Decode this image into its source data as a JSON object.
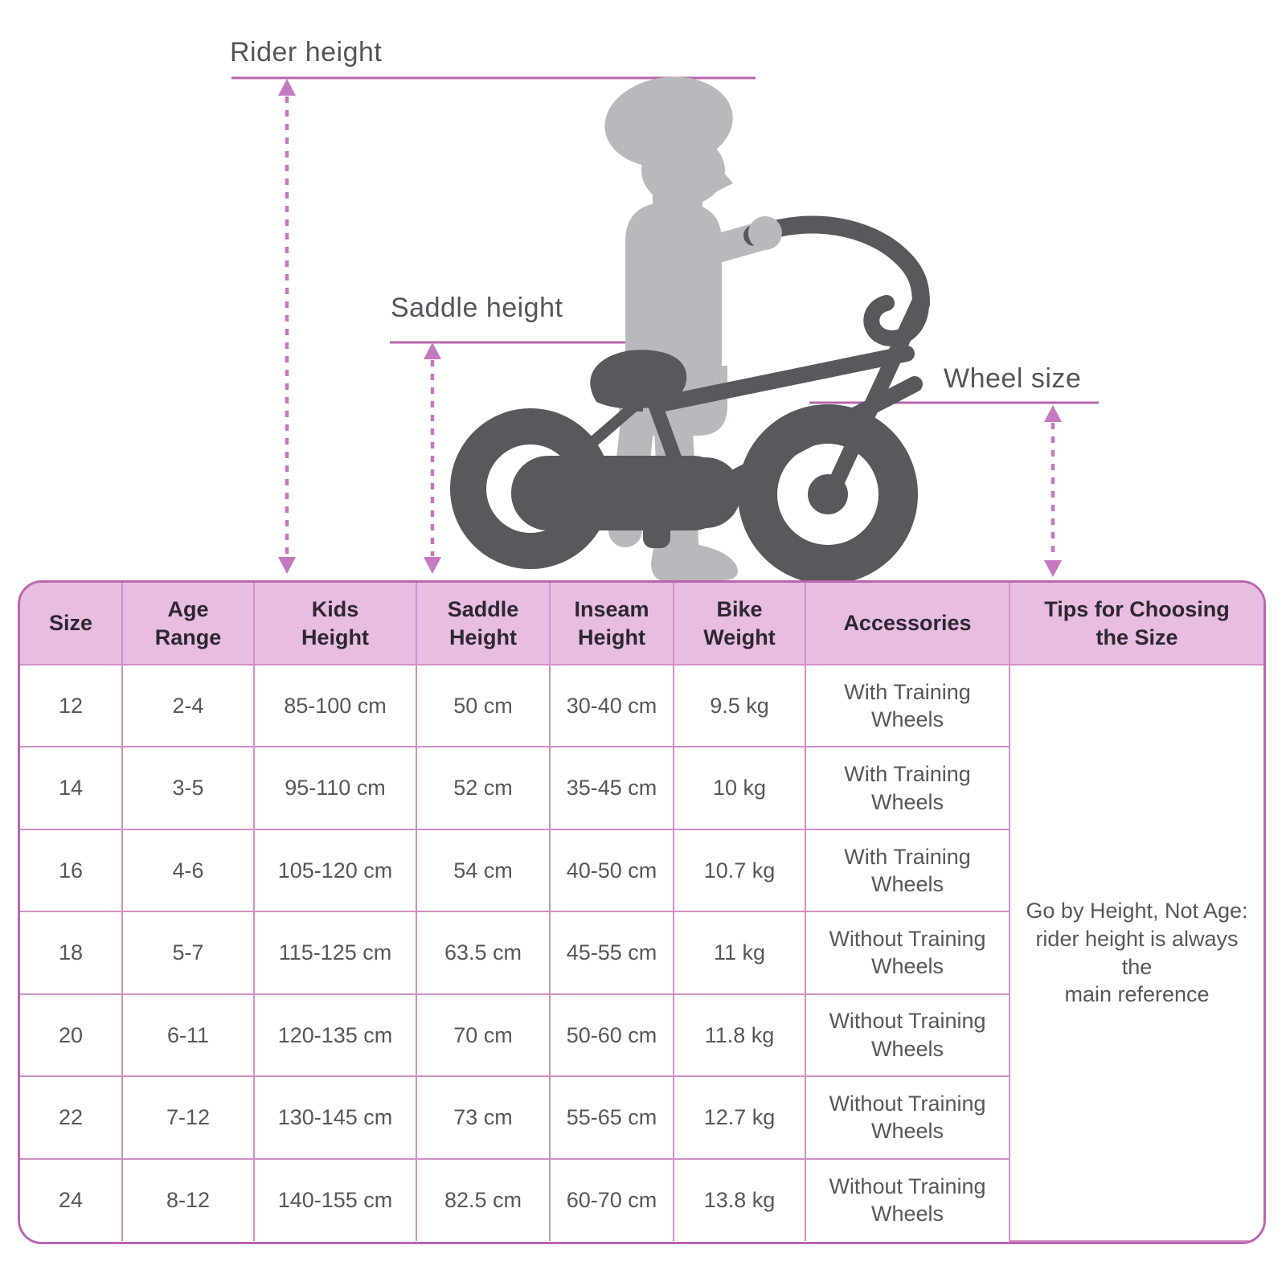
{
  "diagram": {
    "labels": {
      "rider_height": "Rider height",
      "saddle_height": "Saddle height",
      "wheel_size": "Wheel size"
    },
    "icons": [
      "child-with-helmet-silhouette",
      "kids-bike-silhouette",
      "dotted-measure-arrows"
    ]
  },
  "table": {
    "columns": [
      {
        "key": "size",
        "label": "Size"
      },
      {
        "key": "age",
        "label": "Age\nRange"
      },
      {
        "key": "kids_height",
        "label": "Kids\nHeight"
      },
      {
        "key": "saddle_height",
        "label": "Saddle\nHeight"
      },
      {
        "key": "inseam_height",
        "label": "Inseam\nHeight"
      },
      {
        "key": "bike_weight",
        "label": "Bike\nWeight"
      },
      {
        "key": "accessories",
        "label": "Accessories"
      },
      {
        "key": "tips",
        "label": "Tips for Choosing\nthe Size"
      }
    ],
    "rows": [
      {
        "size": "12",
        "age": "2-4",
        "kids_height": "85-100 cm",
        "saddle_height": "50 cm",
        "inseam_height": "30-40 cm",
        "bike_weight": "9.5 kg",
        "accessories": "With Training\nWheels"
      },
      {
        "size": "14",
        "age": "3-5",
        "kids_height": "95-110 cm",
        "saddle_height": "52 cm",
        "inseam_height": "35-45 cm",
        "bike_weight": "10 kg",
        "accessories": "With Training\nWheels"
      },
      {
        "size": "16",
        "age": "4-6",
        "kids_height": "105-120 cm",
        "saddle_height": "54 cm",
        "inseam_height": "40-50 cm",
        "bike_weight": "10.7 kg",
        "accessories": "With Training\nWheels"
      },
      {
        "size": "18",
        "age": "5-7",
        "kids_height": "115-125 cm",
        "saddle_height": "63.5 cm",
        "inseam_height": "45-55 cm",
        "bike_weight": "11 kg",
        "accessories": "Without Training\nWheels"
      },
      {
        "size": "20",
        "age": "6-11",
        "kids_height": "120-135 cm",
        "saddle_height": "70 cm",
        "inseam_height": "50-60 cm",
        "bike_weight": "11.8 kg",
        "accessories": "Without Training\nWheels"
      },
      {
        "size": "22",
        "age": "7-12",
        "kids_height": "130-145 cm",
        "saddle_height": "73 cm",
        "inseam_height": "55-65 cm",
        "bike_weight": "12.7 kg",
        "accessories": "Without Training\nWheels"
      },
      {
        "size": "24",
        "age": "8-12",
        "kids_height": "140-155 cm",
        "saddle_height": "82.5 cm",
        "inseam_height": "60-70 cm",
        "bike_weight": "13.8 kg",
        "accessories": "Without Training\nWheels"
      }
    ],
    "tips_text": "Go by Height, Not Age:\nrider height is always the\nmain reference"
  },
  "colors": {
    "accent_line": "#b766ab",
    "dotted_arrow": "#c678c0",
    "table_outer_border": "#bb66af",
    "table_inner_border": "#d190c6",
    "header_background": "#e8bee0",
    "header_text": "#2d2733",
    "cell_text": "#56575a",
    "child_silhouette": "#b8b9bc",
    "bike_silhouette": "#58595c"
  }
}
